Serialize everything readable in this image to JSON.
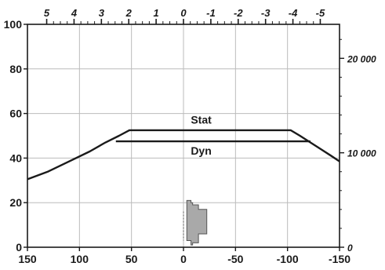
{
  "chart_data": {
    "type": "line",
    "title": "",
    "xlabel": "",
    "ylabel": "",
    "xlim": [
      150,
      -150
    ],
    "ylim": [
      0,
      100
    ],
    "grid": true,
    "x_ticks": [
      150,
      100,
      50,
      0,
      -50,
      -100,
      -150
    ],
    "x_tick_labels": [
      "150",
      "100",
      "50",
      "0",
      "-50",
      "-100",
      "-150"
    ],
    "y_ticks": [
      0,
      20,
      40,
      60,
      80,
      100
    ],
    "y_tick_labels": [
      "0",
      "20",
      "40",
      "60",
      "80",
      "100"
    ],
    "top_axis": {
      "ticks": [
        5,
        4,
        3,
        2,
        1,
        0,
        -1,
        -2,
        -3,
        -4,
        -5
      ],
      "tick_labels": [
        "5",
        "4",
        "3",
        "2",
        "1",
        "0",
        "-1",
        "-2",
        "-3",
        "-4",
        "-5"
      ],
      "x_per_unit": 26.3
    },
    "right_axis": {
      "ticks": [
        0,
        10000,
        20000
      ],
      "tick_labels": [
        "0",
        "10 000",
        "20 000"
      ],
      "ylim": [
        0,
        23600
      ]
    },
    "series": [
      {
        "name": "Stat",
        "x": [
          150,
          130,
          110,
          90,
          75,
          62,
          52,
          50,
          0,
          -50,
          -103,
          -112,
          -122,
          -132,
          -142,
          -150
        ],
        "y": [
          30.5,
          34,
          38.5,
          43,
          47,
          50,
          52.5,
          52.5,
          52.5,
          52.5,
          52.5,
          50,
          47,
          44,
          41,
          38.5
        ]
      },
      {
        "name": "Dyn",
        "x": [
          65,
          0,
          -122
        ],
        "y": [
          47.5,
          47.5,
          47.5
        ]
      }
    ],
    "annotations": [
      {
        "text": "Stat",
        "x": -17,
        "y": 55.5
      },
      {
        "text": "Dyn",
        "x": -17,
        "y": 41.5
      }
    ],
    "colors": {
      "line": "#1a1a1a",
      "grid": "#bbbbbb",
      "axis": "#1a1a1a",
      "shape_fill": "#a9a9a9",
      "shape_stroke": "#555555"
    }
  }
}
